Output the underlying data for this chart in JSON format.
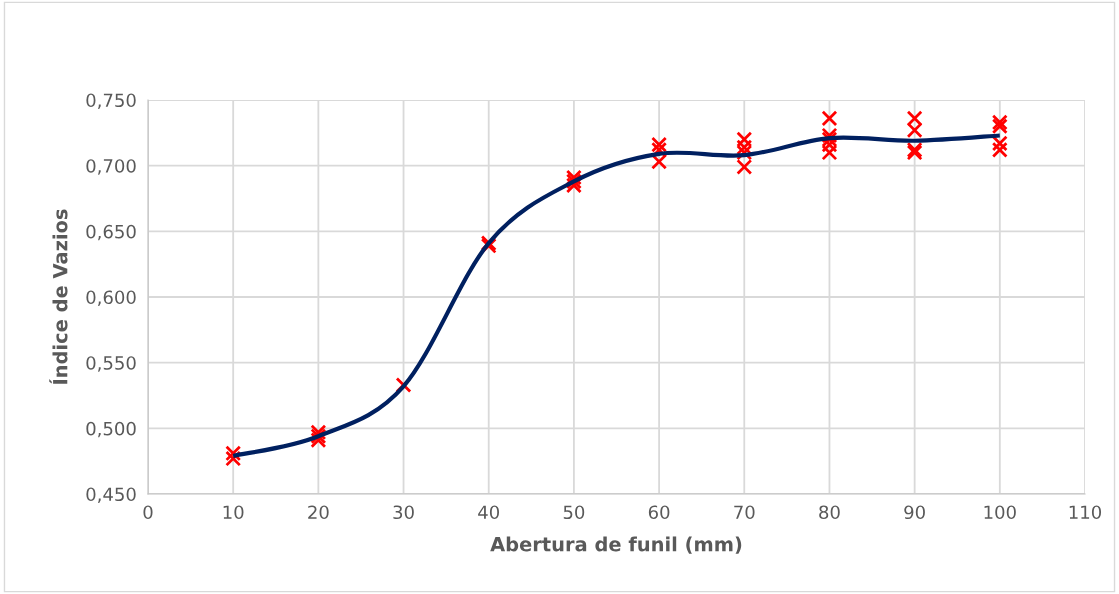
{
  "chart_data": {
    "type": "scatter",
    "xlabel": "Abertura de funil (mm)",
    "ylabel": "Índice de Vazios",
    "series": [
      {
        "color": "#ff0000",
        "marker": "cross",
        "x": [
          10,
          10,
          20,
          20,
          20,
          30,
          40,
          40,
          50,
          50,
          50,
          60,
          60,
          60,
          70,
          70,
          70,
          70,
          80,
          80,
          80,
          80,
          80,
          90,
          90,
          90,
          90,
          100,
          100,
          100,
          100
        ],
        "values": [
          0.481,
          0.477,
          0.497,
          0.494,
          0.491,
          0.533,
          0.641,
          0.639,
          0.691,
          0.688,
          0.685,
          0.716,
          0.712,
          0.703,
          0.72,
          0.714,
          0.71,
          0.699,
          0.736,
          0.723,
          0.72,
          0.716,
          0.71,
          0.736,
          0.727,
          0.712,
          0.71,
          0.733,
          0.73,
          0.717,
          0.712
        ]
      },
      {
        "type": "line",
        "color": "#002060",
        "marker": "none",
        "x": [
          10,
          20,
          30,
          40,
          50,
          60,
          70,
          80,
          90,
          100
        ],
        "values": [
          0.479,
          0.494,
          0.532,
          0.641,
          0.688,
          0.709,
          0.708,
          0.721,
          0.719,
          0.723
        ]
      }
    ],
    "xlim": [
      0,
      110
    ],
    "xticks": [
      0,
      10,
      20,
      30,
      40,
      50,
      60,
      70,
      80,
      90,
      100,
      110
    ],
    "ylim": [
      0.45,
      0.75
    ],
    "yticks": [
      {
        "value": 0.45,
        "label": "0,450"
      },
      {
        "value": 0.5,
        "label": "0,500"
      },
      {
        "value": 0.55,
        "label": "0,550"
      },
      {
        "value": 0.6,
        "label": "0,600"
      },
      {
        "value": 0.65,
        "label": "0,650"
      },
      {
        "value": 0.7,
        "label": "0,700"
      },
      {
        "value": 0.75,
        "label": "0,750"
      }
    ],
    "grid": true,
    "legend": false
  }
}
